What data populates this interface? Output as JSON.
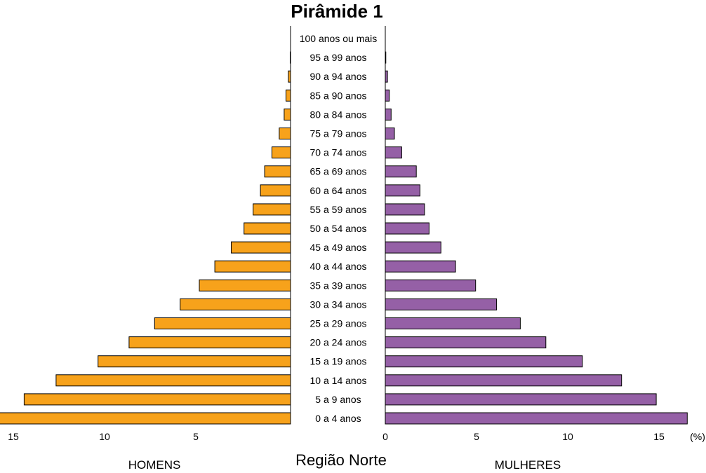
{
  "chart_data": {
    "type": "bar",
    "title": "Pirâmide 1",
    "subtitle": "Região Norte",
    "unit_label": "(%)",
    "left_label": "HOMENS",
    "right_label": "MULHERES",
    "categories": [
      "100 anos ou mais",
      "95 a 99 anos",
      "90 a 94 anos",
      "85 a 90 anos",
      "80 a 84 anos",
      "75 a 79 anos",
      "70 a 74 anos",
      "65 a 69 anos",
      "60 a 64 anos",
      "55 a 59 anos",
      "50 a 54 anos",
      "45 a 49 anos",
      "40 a 44 anos",
      "35 a 39 anos",
      "30 a 34 anos",
      "25 a 29 anos",
      "20 a 24 anos",
      "15 a 19 anos",
      "10 a 14 anos",
      "5 a 9 anos",
      "0 a 4 anos"
    ],
    "series": [
      {
        "name": "HOMENS",
        "color": "#F7A21B",
        "values": [
          0.0,
          0.02,
          0.12,
          0.25,
          0.35,
          0.62,
          1.02,
          1.42,
          1.65,
          2.05,
          2.55,
          3.25,
          4.15,
          5.0,
          6.05,
          7.45,
          8.85,
          10.55,
          12.85,
          14.6,
          15.95
        ]
      },
      {
        "name": "MULHERES",
        "color": "#9560A6",
        "values": [
          0.0,
          0.03,
          0.12,
          0.22,
          0.32,
          0.5,
          0.9,
          1.7,
          1.9,
          2.15,
          2.4,
          3.05,
          3.85,
          4.95,
          6.1,
          7.4,
          8.8,
          10.8,
          12.95,
          14.85,
          16.55
        ]
      }
    ],
    "x_ticks_left": [
      15,
      10,
      5
    ],
    "x_ticks_right": [
      0,
      5,
      10,
      15
    ],
    "xlim": [
      0,
      17
    ],
    "grid": false
  }
}
